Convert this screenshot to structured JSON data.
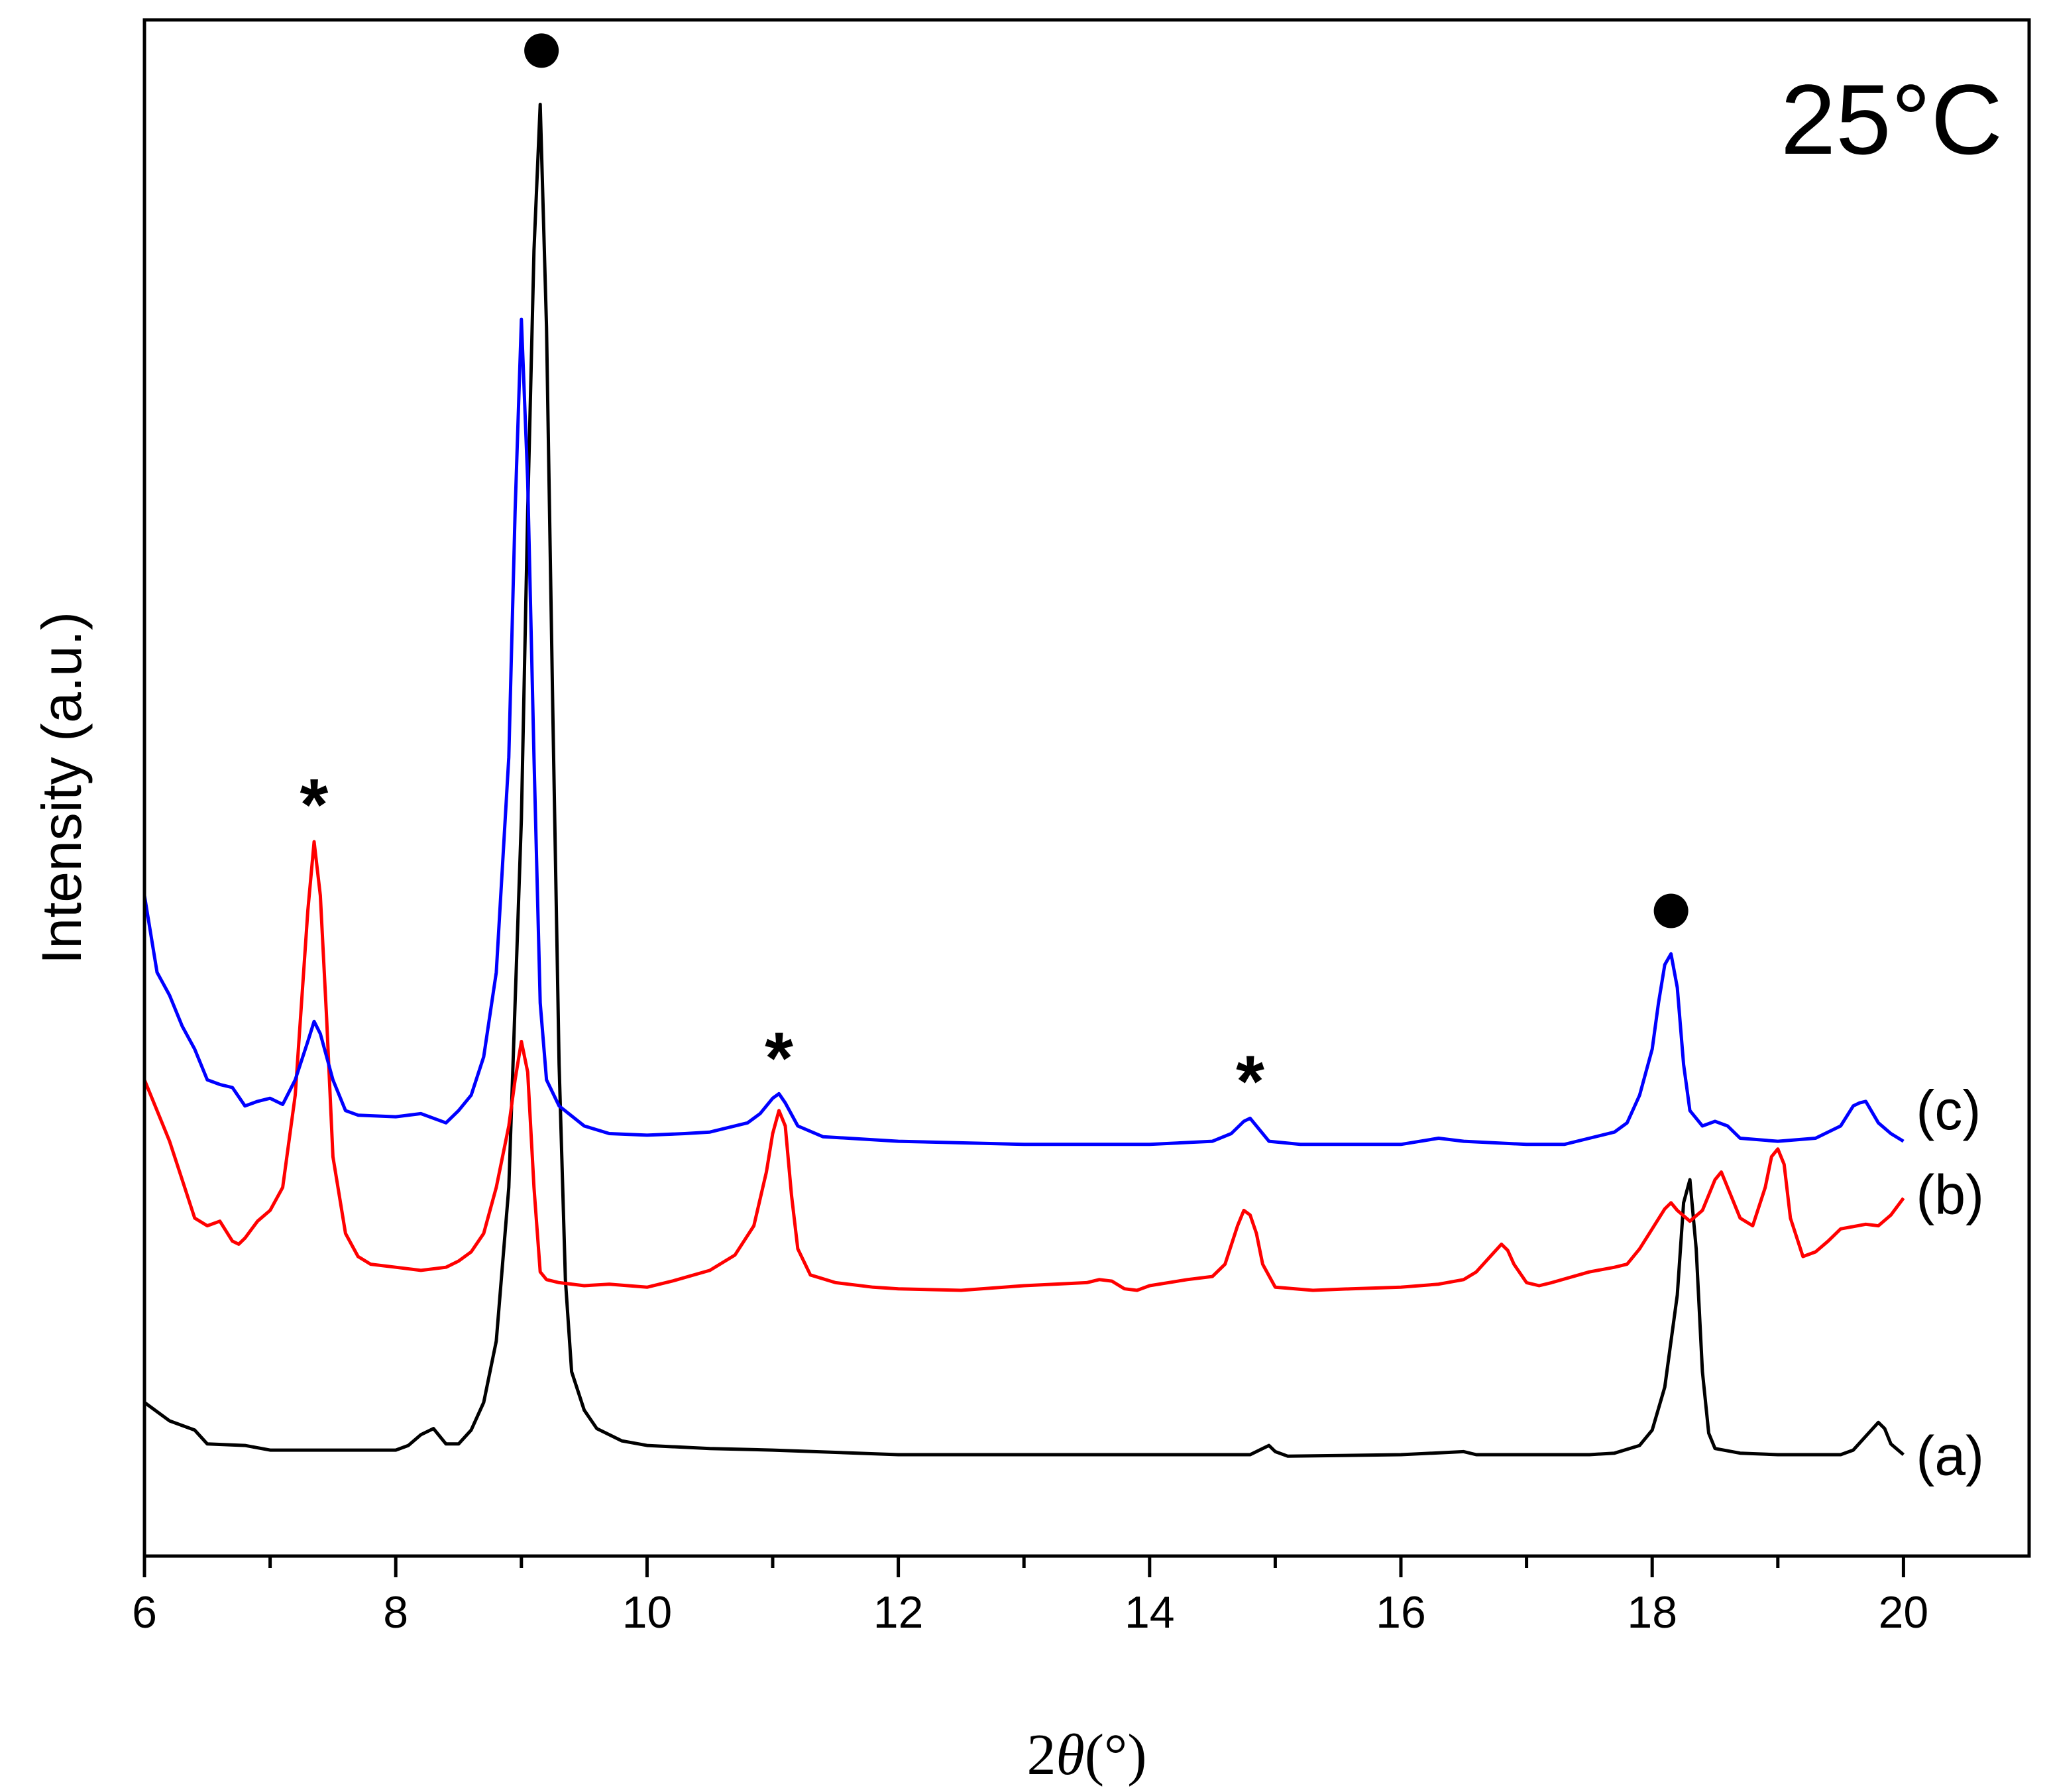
{
  "chart_data": {
    "type": "line",
    "title": "25°C",
    "xlabel_symbol": "2",
    "xlabel_theta": "θ",
    "xlabel_unit": "(°)",
    "ylabel": "Intensity (a.u.)",
    "xlim": [
      6,
      21
    ],
    "ylim": [
      0,
      100
    ],
    "x_ticks": [
      6,
      8,
      10,
      12,
      14,
      16,
      18,
      20
    ],
    "x_tick_labels": [
      "6",
      "8",
      "10",
      "12",
      "14",
      "16",
      "18",
      "20"
    ],
    "y_ticks_shown": false,
    "series": [
      {
        "name": "(a)",
        "label": "(a)",
        "color": "#000000",
        "label_x": 20.1,
        "label_y": 6.5,
        "points": [
          [
            6.0,
            10.0
          ],
          [
            6.2,
            8.8
          ],
          [
            6.4,
            8.2
          ],
          [
            6.5,
            7.3
          ],
          [
            6.8,
            7.2
          ],
          [
            7.0,
            6.9
          ],
          [
            7.5,
            6.9
          ],
          [
            8.0,
            6.9
          ],
          [
            8.1,
            7.2
          ],
          [
            8.2,
            7.9
          ],
          [
            8.3,
            8.3
          ],
          [
            8.4,
            7.3
          ],
          [
            8.5,
            7.3
          ],
          [
            8.6,
            8.2
          ],
          [
            8.7,
            10.0
          ],
          [
            8.8,
            14.0
          ],
          [
            8.9,
            24.0
          ],
          [
            9.0,
            48.0
          ],
          [
            9.05,
            68.0
          ],
          [
            9.1,
            85.0
          ],
          [
            9.15,
            94.5
          ],
          [
            9.2,
            80.0
          ],
          [
            9.25,
            55.0
          ],
          [
            9.3,
            32.0
          ],
          [
            9.35,
            18.0
          ],
          [
            9.4,
            12.0
          ],
          [
            9.5,
            9.5
          ],
          [
            9.6,
            8.3
          ],
          [
            9.8,
            7.5
          ],
          [
            10.0,
            7.2
          ],
          [
            10.5,
            7.0
          ],
          [
            11.0,
            6.9
          ],
          [
            12.0,
            6.6
          ],
          [
            13.0,
            6.6
          ],
          [
            14.0,
            6.6
          ],
          [
            14.8,
            6.6
          ],
          [
            14.9,
            7.0
          ],
          [
            14.95,
            7.2
          ],
          [
            15.0,
            6.8
          ],
          [
            15.1,
            6.5
          ],
          [
            16.0,
            6.6
          ],
          [
            16.5,
            6.8
          ],
          [
            16.6,
            6.6
          ],
          [
            17.0,
            6.6
          ],
          [
            17.5,
            6.6
          ],
          [
            17.7,
            6.7
          ],
          [
            17.9,
            7.2
          ],
          [
            18.0,
            8.2
          ],
          [
            18.1,
            11.0
          ],
          [
            18.2,
            17.0
          ],
          [
            18.25,
            23.0
          ],
          [
            18.3,
            24.5
          ],
          [
            18.35,
            20.0
          ],
          [
            18.4,
            12.0
          ],
          [
            18.45,
            8.0
          ],
          [
            18.5,
            7.0
          ],
          [
            18.7,
            6.7
          ],
          [
            19.0,
            6.6
          ],
          [
            19.5,
            6.6
          ],
          [
            19.6,
            6.9
          ],
          [
            19.7,
            7.8
          ],
          [
            19.8,
            8.7
          ],
          [
            19.85,
            8.3
          ],
          [
            19.9,
            7.3
          ],
          [
            20.0,
            6.6
          ]
        ]
      },
      {
        "name": "(b)",
        "label": "(b)",
        "color": "#ff0000",
        "label_x": 20.1,
        "label_y": 23.5,
        "points": [
          [
            6.0,
            31.0
          ],
          [
            6.1,
            29.0
          ],
          [
            6.2,
            27.0
          ],
          [
            6.3,
            24.5
          ],
          [
            6.4,
            22.0
          ],
          [
            6.5,
            21.5
          ],
          [
            6.6,
            21.8
          ],
          [
            6.7,
            20.5
          ],
          [
            6.75,
            20.3
          ],
          [
            6.8,
            20.7
          ],
          [
            6.9,
            21.8
          ],
          [
            7.0,
            22.5
          ],
          [
            7.1,
            24.0
          ],
          [
            7.2,
            30.0
          ],
          [
            7.3,
            42.0
          ],
          [
            7.35,
            46.5
          ],
          [
            7.4,
            43.0
          ],
          [
            7.45,
            35.0
          ],
          [
            7.5,
            26.0
          ],
          [
            7.6,
            21.0
          ],
          [
            7.7,
            19.5
          ],
          [
            7.8,
            19.0
          ],
          [
            8.0,
            18.8
          ],
          [
            8.2,
            18.6
          ],
          [
            8.4,
            18.8
          ],
          [
            8.5,
            19.2
          ],
          [
            8.6,
            19.8
          ],
          [
            8.7,
            21.0
          ],
          [
            8.8,
            24.0
          ],
          [
            8.9,
            28.0
          ],
          [
            8.95,
            31.0
          ],
          [
            9.0,
            33.5
          ],
          [
            9.05,
            31.5
          ],
          [
            9.1,
            24.0
          ],
          [
            9.15,
            18.5
          ],
          [
            9.2,
            18.0
          ],
          [
            9.3,
            17.8
          ],
          [
            9.5,
            17.6
          ],
          [
            9.7,
            17.7
          ],
          [
            10.0,
            17.5
          ],
          [
            10.2,
            17.9
          ],
          [
            10.5,
            18.6
          ],
          [
            10.7,
            19.6
          ],
          [
            10.85,
            21.5
          ],
          [
            10.95,
            25.0
          ],
          [
            11.0,
            27.5
          ],
          [
            11.05,
            29.0
          ],
          [
            11.1,
            28.0
          ],
          [
            11.15,
            23.5
          ],
          [
            11.2,
            20.0
          ],
          [
            11.3,
            18.3
          ],
          [
            11.5,
            17.8
          ],
          [
            11.8,
            17.5
          ],
          [
            12.0,
            17.4
          ],
          [
            12.5,
            17.3
          ],
          [
            13.0,
            17.6
          ],
          [
            13.5,
            17.8
          ],
          [
            13.6,
            18.0
          ],
          [
            13.7,
            17.9
          ],
          [
            13.8,
            17.4
          ],
          [
            13.9,
            17.3
          ],
          [
            14.0,
            17.6
          ],
          [
            14.3,
            18.0
          ],
          [
            14.5,
            18.2
          ],
          [
            14.6,
            19.0
          ],
          [
            14.7,
            21.5
          ],
          [
            14.75,
            22.5
          ],
          [
            14.8,
            22.2
          ],
          [
            14.85,
            21.0
          ],
          [
            14.9,
            19.0
          ],
          [
            15.0,
            17.5
          ],
          [
            15.3,
            17.3
          ],
          [
            15.6,
            17.4
          ],
          [
            16.0,
            17.5
          ],
          [
            16.3,
            17.7
          ],
          [
            16.5,
            18.0
          ],
          [
            16.6,
            18.5
          ],
          [
            16.7,
            19.4
          ],
          [
            16.8,
            20.3
          ],
          [
            16.85,
            19.9
          ],
          [
            16.9,
            19.0
          ],
          [
            17.0,
            17.8
          ],
          [
            17.1,
            17.6
          ],
          [
            17.2,
            17.8
          ],
          [
            17.5,
            18.5
          ],
          [
            17.7,
            18.8
          ],
          [
            17.8,
            19.0
          ],
          [
            17.9,
            20.0
          ],
          [
            18.0,
            21.3
          ],
          [
            18.1,
            22.6
          ],
          [
            18.15,
            23.0
          ],
          [
            18.2,
            22.5
          ],
          [
            18.3,
            21.8
          ],
          [
            18.4,
            22.5
          ],
          [
            18.5,
            24.5
          ],
          [
            18.55,
            25.0
          ],
          [
            18.6,
            24.0
          ],
          [
            18.7,
            22.0
          ],
          [
            18.8,
            21.5
          ],
          [
            18.9,
            24.0
          ],
          [
            18.95,
            26.0
          ],
          [
            19.0,
            26.5
          ],
          [
            19.05,
            25.5
          ],
          [
            19.1,
            22.0
          ],
          [
            19.2,
            19.5
          ],
          [
            19.3,
            19.8
          ],
          [
            19.4,
            20.5
          ],
          [
            19.5,
            21.3
          ],
          [
            19.7,
            21.6
          ],
          [
            19.8,
            21.5
          ],
          [
            19.9,
            22.2
          ],
          [
            20.0,
            23.3
          ]
        ]
      },
      {
        "name": "(c)",
        "label": "(c)",
        "color": "#0000ff",
        "label_x": 20.1,
        "label_y": 29.0,
        "points": [
          [
            6.0,
            43.0
          ],
          [
            6.1,
            38.0
          ],
          [
            6.2,
            36.5
          ],
          [
            6.3,
            34.5
          ],
          [
            6.4,
            33.0
          ],
          [
            6.5,
            31.0
          ],
          [
            6.6,
            30.7
          ],
          [
            6.7,
            30.5
          ],
          [
            6.8,
            29.3
          ],
          [
            6.9,
            29.6
          ],
          [
            7.0,
            29.8
          ],
          [
            7.1,
            29.4
          ],
          [
            7.2,
            31.0
          ],
          [
            7.3,
            33.5
          ],
          [
            7.35,
            34.8
          ],
          [
            7.4,
            34.0
          ],
          [
            7.5,
            31.0
          ],
          [
            7.6,
            29.0
          ],
          [
            7.7,
            28.7
          ],
          [
            8.0,
            28.6
          ],
          [
            8.2,
            28.8
          ],
          [
            8.4,
            28.2
          ],
          [
            8.5,
            29.0
          ],
          [
            8.6,
            30.0
          ],
          [
            8.7,
            32.5
          ],
          [
            8.8,
            38.0
          ],
          [
            8.9,
            52.0
          ],
          [
            8.95,
            68.0
          ],
          [
            9.0,
            80.5
          ],
          [
            9.05,
            70.0
          ],
          [
            9.1,
            52.0
          ],
          [
            9.15,
            36.0
          ],
          [
            9.2,
            31.0
          ],
          [
            9.3,
            29.3
          ],
          [
            9.5,
            28.0
          ],
          [
            9.7,
            27.5
          ],
          [
            10.0,
            27.4
          ],
          [
            10.3,
            27.5
          ],
          [
            10.5,
            27.6
          ],
          [
            10.8,
            28.2
          ],
          [
            10.9,
            28.8
          ],
          [
            11.0,
            29.8
          ],
          [
            11.05,
            30.1
          ],
          [
            11.1,
            29.5
          ],
          [
            11.2,
            28.0
          ],
          [
            11.4,
            27.3
          ],
          [
            12.0,
            27.0
          ],
          [
            13.0,
            26.8
          ],
          [
            14.0,
            26.8
          ],
          [
            14.5,
            27.0
          ],
          [
            14.65,
            27.5
          ],
          [
            14.75,
            28.3
          ],
          [
            14.8,
            28.5
          ],
          [
            14.85,
            28.0
          ],
          [
            14.95,
            27.0
          ],
          [
            15.2,
            26.8
          ],
          [
            16.0,
            26.8
          ],
          [
            16.3,
            27.2
          ],
          [
            16.5,
            27.0
          ],
          [
            17.0,
            26.8
          ],
          [
            17.3,
            26.8
          ],
          [
            17.5,
            27.2
          ],
          [
            17.7,
            27.6
          ],
          [
            17.8,
            28.2
          ],
          [
            17.9,
            30.0
          ],
          [
            18.0,
            33.0
          ],
          [
            18.05,
            36.0
          ],
          [
            18.1,
            38.5
          ],
          [
            18.15,
            39.2
          ],
          [
            18.2,
            37.0
          ],
          [
            18.25,
            32.0
          ],
          [
            18.3,
            29.0
          ],
          [
            18.4,
            28.0
          ],
          [
            18.5,
            28.3
          ],
          [
            18.6,
            28.0
          ],
          [
            18.7,
            27.2
          ],
          [
            19.0,
            27.0
          ],
          [
            19.3,
            27.2
          ],
          [
            19.5,
            28.0
          ],
          [
            19.6,
            29.3
          ],
          [
            19.65,
            29.5
          ],
          [
            19.7,
            29.6
          ],
          [
            19.8,
            28.2
          ],
          [
            19.9,
            27.5
          ],
          [
            20.0,
            27.0
          ]
        ]
      }
    ],
    "annotations": [
      {
        "marker": "circle",
        "x": 9.16,
        "y": 98.0
      },
      {
        "marker": "circle",
        "x": 18.15,
        "y": 42.0
      },
      {
        "text": "*",
        "x": 7.35,
        "y": 49.0
      },
      {
        "text": "*",
        "x": 11.05,
        "y": 32.5
      },
      {
        "text": "*",
        "x": 14.8,
        "y": 31.0
      }
    ]
  }
}
